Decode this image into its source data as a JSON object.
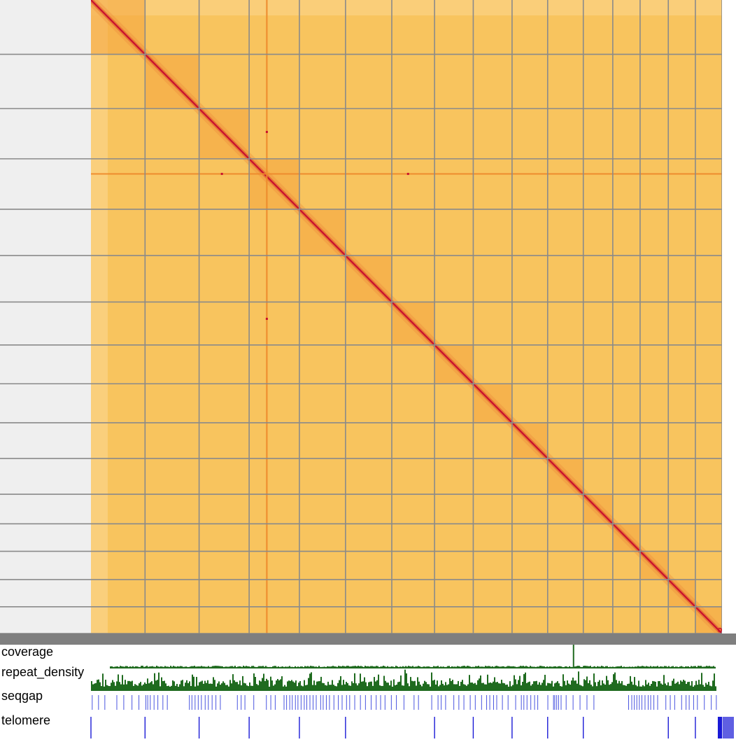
{
  "chart_data": {
    "type": "heatmap",
    "title": "",
    "description_visible": false,
    "colors": {
      "background": "#f8c45e",
      "diagonal": "#c8102e",
      "block": "#f4a640",
      "grid": "#8a8a8a",
      "left_panel": "#efefef",
      "separator": "#7f7f7f",
      "coverage": "#1f6b1f",
      "repeat_density": "#1f6b1f",
      "seqgap": "#4a55e0",
      "telomere": "#1a1ad6"
    },
    "scaffold_boundaries": [
      0,
      0.0857,
      0.1714,
      0.2507,
      0.3303,
      0.4034,
      0.4767,
      0.5445,
      0.6058,
      0.6673,
      0.7237,
      0.7802,
      0.8269,
      0.8702,
      0.9149,
      0.9578,
      1.0
    ],
    "off_diagonal_contacts": [
      {
        "x": 0.2787,
        "y": 0.2083
      },
      {
        "x": 0.2075,
        "y": 0.2745
      },
      {
        "x": 0.5025,
        "y": 0.2745
      },
      {
        "x": 0.2787,
        "y": 0.5033
      }
    ],
    "tracks": [
      {
        "name": "coverage",
        "type": "bar",
        "color": "#1f6b1f"
      },
      {
        "name": "repeat_density",
        "type": "bar",
        "color": "#1f6b1f"
      },
      {
        "name": "seqgap",
        "type": "tick",
        "color": "#4a55e0"
      },
      {
        "name": "telomere",
        "type": "tick",
        "color": "#1a1ad6"
      }
    ],
    "coverage_peak": {
      "x": 0.7636,
      "value": 1.0
    },
    "coverage_baseline": 0.15,
    "seqgap_positions": [
      0.002,
      0.012,
      0.022,
      0.041,
      0.052,
      0.065,
      0.076,
      0.087,
      0.09,
      0.094,
      0.1,
      0.106,
      0.114,
      0.121,
      0.156,
      0.16,
      0.165,
      0.17,
      0.175,
      0.181,
      0.186,
      0.192,
      0.198,
      0.205,
      0.232,
      0.238,
      0.244,
      0.258,
      0.278,
      0.285,
      0.292,
      0.306,
      0.31,
      0.315,
      0.319,
      0.324,
      0.328,
      0.333,
      0.338,
      0.342,
      0.347,
      0.352,
      0.357,
      0.364,
      0.368,
      0.373,
      0.378,
      0.385,
      0.392,
      0.398,
      0.405,
      0.41,
      0.418,
      0.427,
      0.435,
      0.444,
      0.452,
      0.459,
      0.466,
      0.476,
      0.484,
      0.496,
      0.512,
      0.519,
      0.54,
      0.55,
      0.555,
      0.562,
      0.575,
      0.583,
      0.591,
      0.601,
      0.609,
      0.619,
      0.627,
      0.632,
      0.638,
      0.643,
      0.652,
      0.661,
      0.673,
      0.682,
      0.686,
      0.691,
      0.697,
      0.703,
      0.708,
      0.724,
      0.733,
      0.735,
      0.738,
      0.741,
      0.745,
      0.753,
      0.764,
      0.775,
      0.786,
      0.797,
      0.852,
      0.857,
      0.861,
      0.865,
      0.869,
      0.873,
      0.878,
      0.883,
      0.887,
      0.892,
      0.898,
      0.911,
      0.918,
      0.925,
      0.936,
      0.943,
      0.948,
      0.955,
      0.961,
      0.972,
      0.983,
      0.991
    ],
    "telomere_positions": [
      0.0,
      0.0857,
      0.1714,
      0.2507,
      0.3303,
      0.4034,
      0.5445,
      0.6058,
      0.6673,
      0.7237,
      0.7802,
      0.9149,
      0.9578,
      0.9995,
      0.9986,
      0.9977,
      0.9968,
      0.9959,
      0.995,
      0.9941
    ]
  }
}
